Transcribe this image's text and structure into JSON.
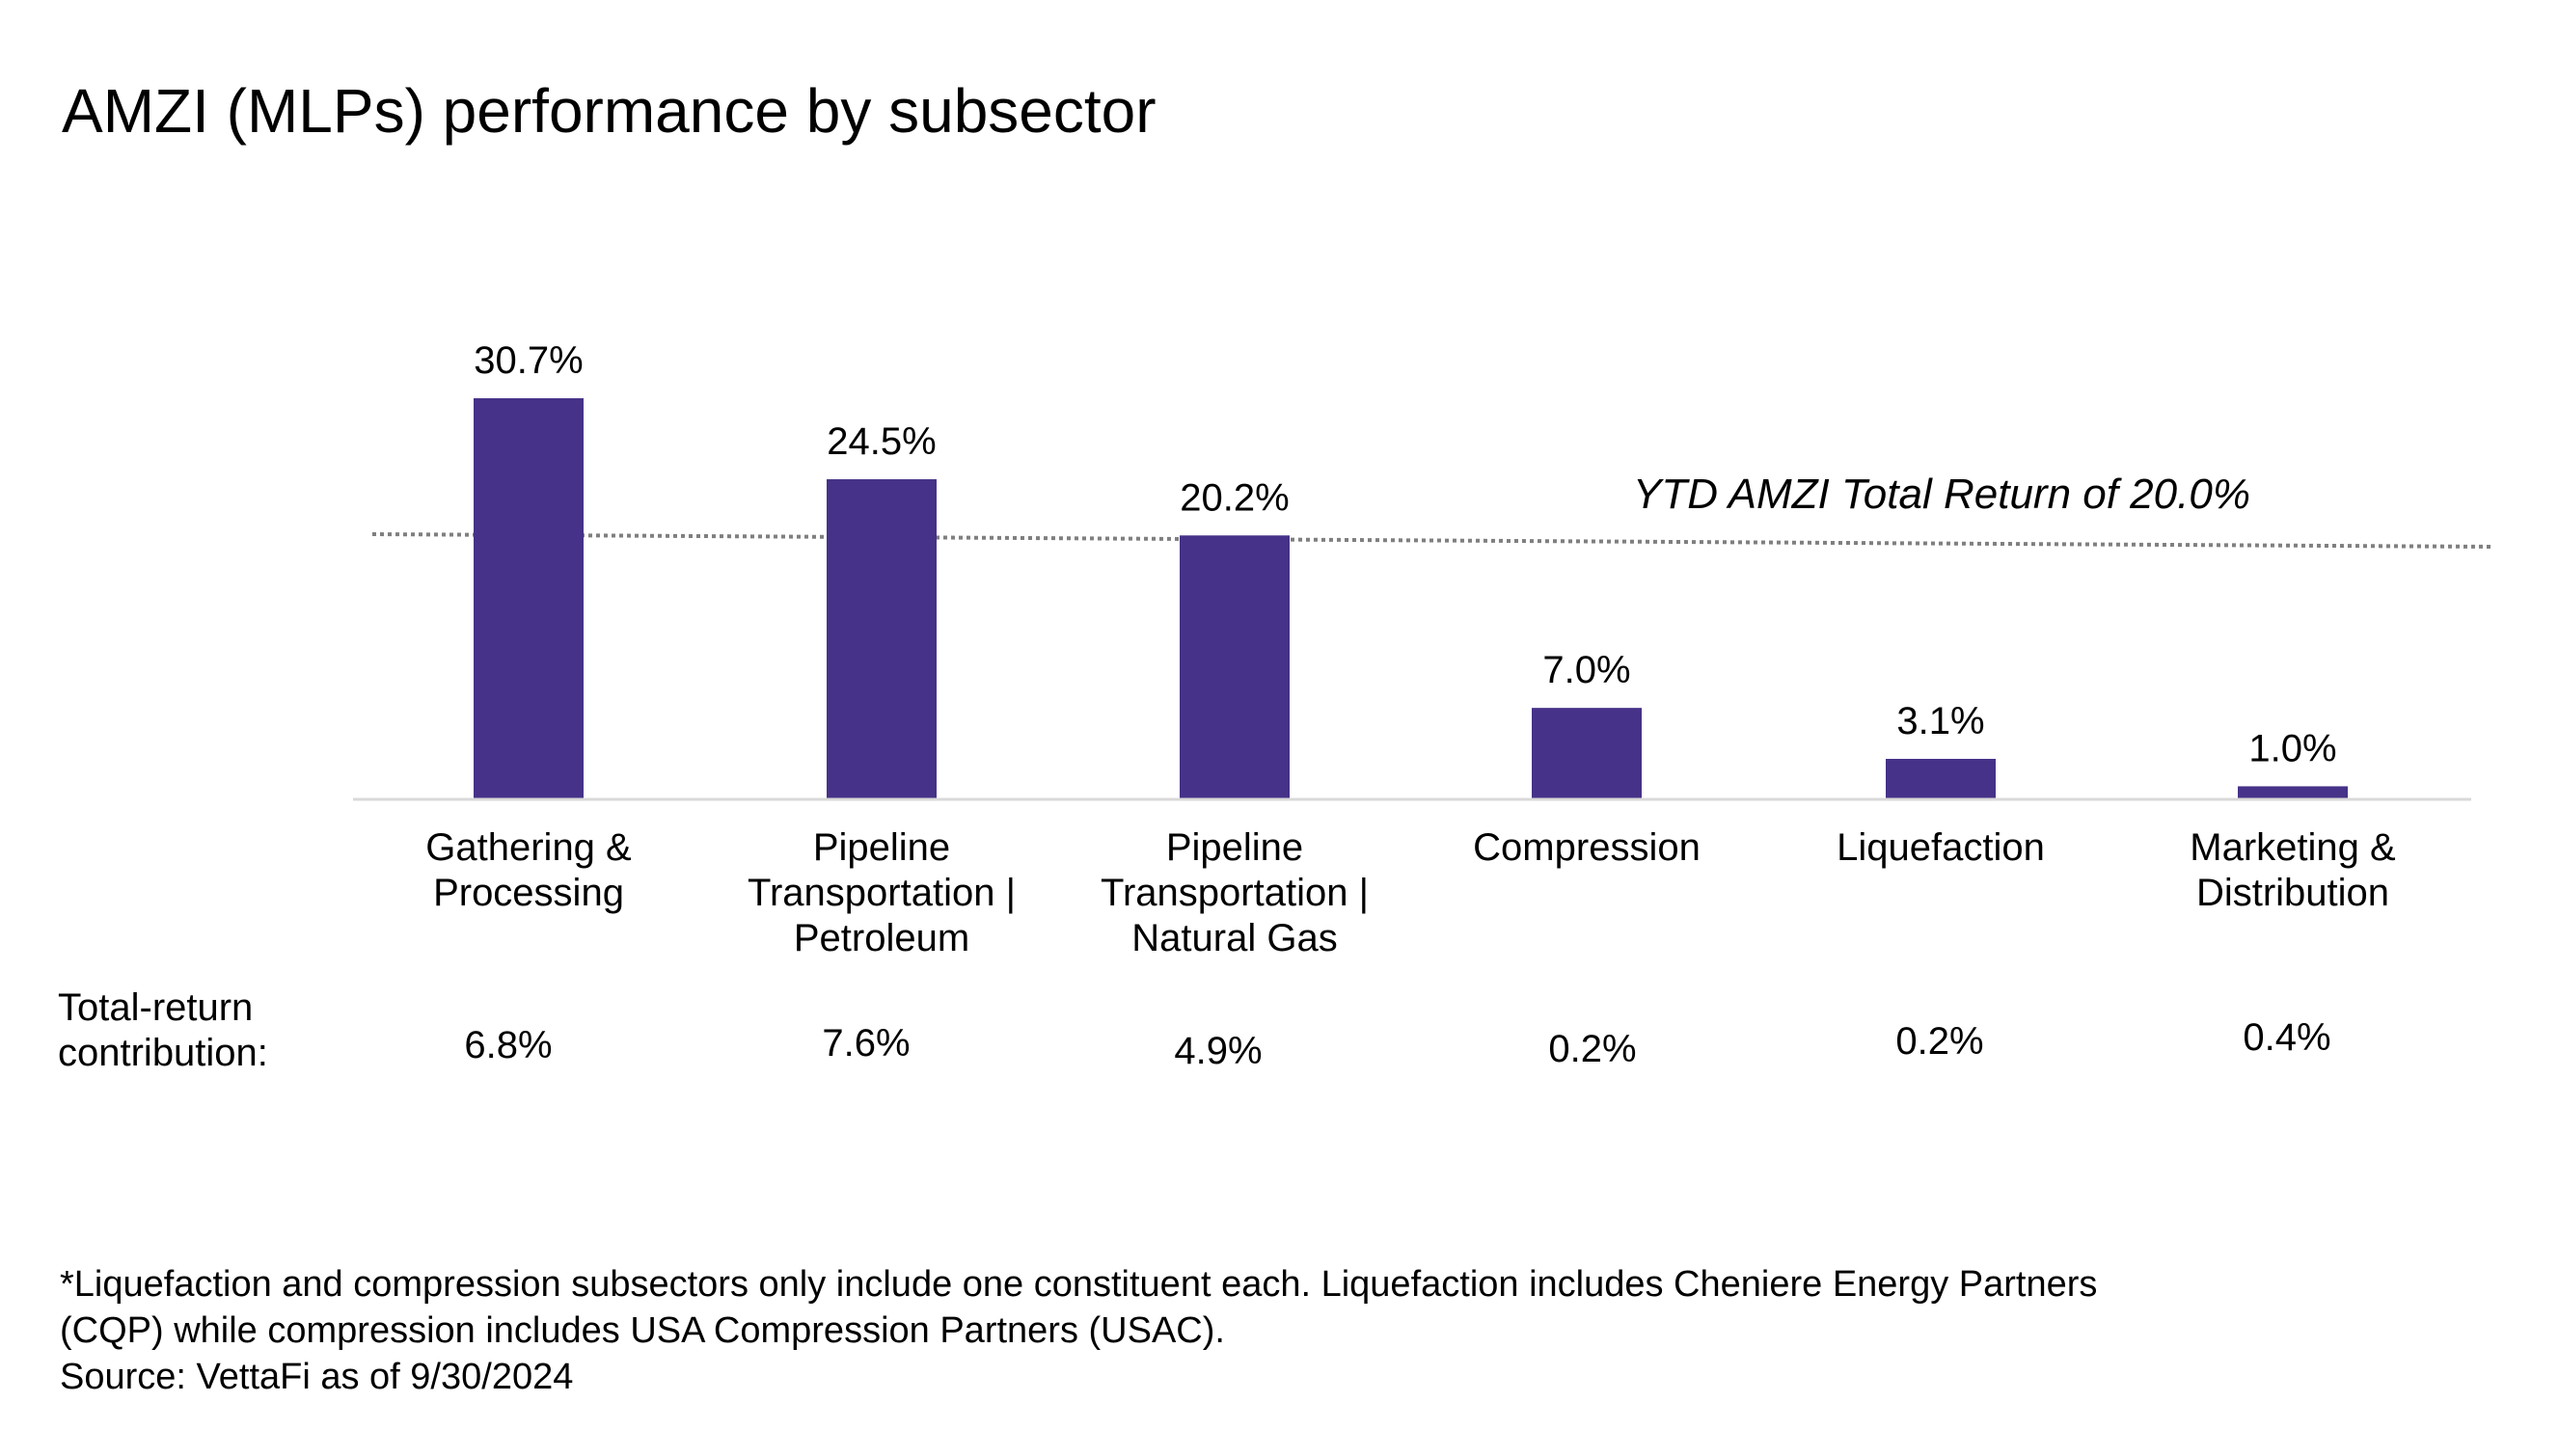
{
  "title": "AMZI (MLPs) performance by subsector",
  "chart_data": {
    "type": "bar",
    "categories": [
      [
        "Gathering &",
        "Processing"
      ],
      [
        "Pipeline",
        "Transportation |",
        "Petroleum"
      ],
      [
        "Pipeline",
        "Transportation |",
        "Natural Gas"
      ],
      [
        "Compression"
      ],
      [
        "Liquefaction"
      ],
      [
        "Marketing &",
        "Distribution"
      ]
    ],
    "values": [
      30.7,
      24.5,
      20.2,
      7.0,
      3.1,
      1.0
    ],
    "value_labels": [
      "30.7%",
      "24.5%",
      "20.2%",
      "7.0%",
      "3.1%",
      "1.0%"
    ],
    "reference_line": {
      "value": 20.0,
      "label": "YTD AMZI Total Return of 20.0%",
      "style": "dotted"
    },
    "ylim": [
      0,
      33
    ],
    "grid": false,
    "bar_color": "#463288",
    "reference_color": "#7f7f7f",
    "axis_color": "#d9d9d9"
  },
  "contribution": {
    "label_lines": [
      "Total-return",
      "contribution:"
    ],
    "values": [
      "6.8%",
      "7.6%",
      "4.9%",
      "0.2%",
      "0.2%",
      "0.4%"
    ]
  },
  "footnote": {
    "lines": [
      "*Liquefaction and compression subsectors only include one constituent each. Liquefaction includes Cheniere Energy Partners",
      "(CQP) while compression includes USA Compression Partners (USAC).",
      "Source: VettaFi as of 9/30/2024"
    ]
  }
}
